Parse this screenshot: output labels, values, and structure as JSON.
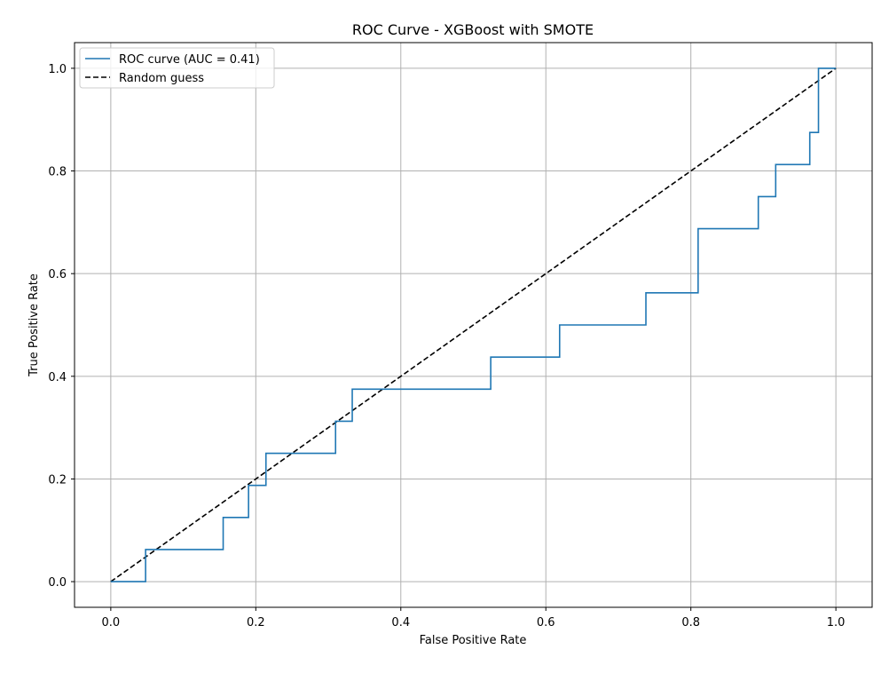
{
  "chart_data": {
    "type": "line",
    "title": "ROC Curve - XGBoost with SMOTE",
    "xlabel": "False Positive Rate",
    "ylabel": "True Positive Rate",
    "xlim": [
      -0.05,
      1.05
    ],
    "ylim": [
      -0.05,
      1.05
    ],
    "xticks": [
      0.0,
      0.2,
      0.4,
      0.6,
      0.8,
      1.0
    ],
    "yticks": [
      0.0,
      0.2,
      0.4,
      0.6,
      0.8,
      1.0
    ],
    "xtick_labels": [
      "0.0",
      "0.2",
      "0.4",
      "0.6",
      "0.8",
      "1.0"
    ],
    "ytick_labels": [
      "0.0",
      "0.2",
      "0.4",
      "0.6",
      "0.8",
      "1.0"
    ],
    "grid": true,
    "legend_position": "top-left",
    "series": [
      {
        "name": "ROC curve (AUC = 0.41)",
        "color": "#1f77b4",
        "style": "solid",
        "x": [
          0.0,
          0.048,
          0.048,
          0.155,
          0.155,
          0.19,
          0.19,
          0.214,
          0.214,
          0.31,
          0.31,
          0.333,
          0.333,
          0.524,
          0.524,
          0.619,
          0.619,
          0.738,
          0.738,
          0.81,
          0.81,
          0.893,
          0.893,
          0.917,
          0.917,
          0.964,
          0.964,
          0.976,
          0.976,
          1.0
        ],
        "y": [
          0.0,
          0.0,
          0.0625,
          0.0625,
          0.125,
          0.125,
          0.1875,
          0.1875,
          0.25,
          0.25,
          0.3125,
          0.3125,
          0.375,
          0.375,
          0.4375,
          0.4375,
          0.5,
          0.5,
          0.5625,
          0.5625,
          0.6875,
          0.6875,
          0.75,
          0.75,
          0.8125,
          0.8125,
          0.875,
          0.875,
          1.0,
          1.0
        ]
      },
      {
        "name": "Random guess",
        "color": "#000000",
        "style": "dashed",
        "x": [
          0.0,
          1.0
        ],
        "y": [
          0.0,
          1.0
        ]
      }
    ]
  }
}
